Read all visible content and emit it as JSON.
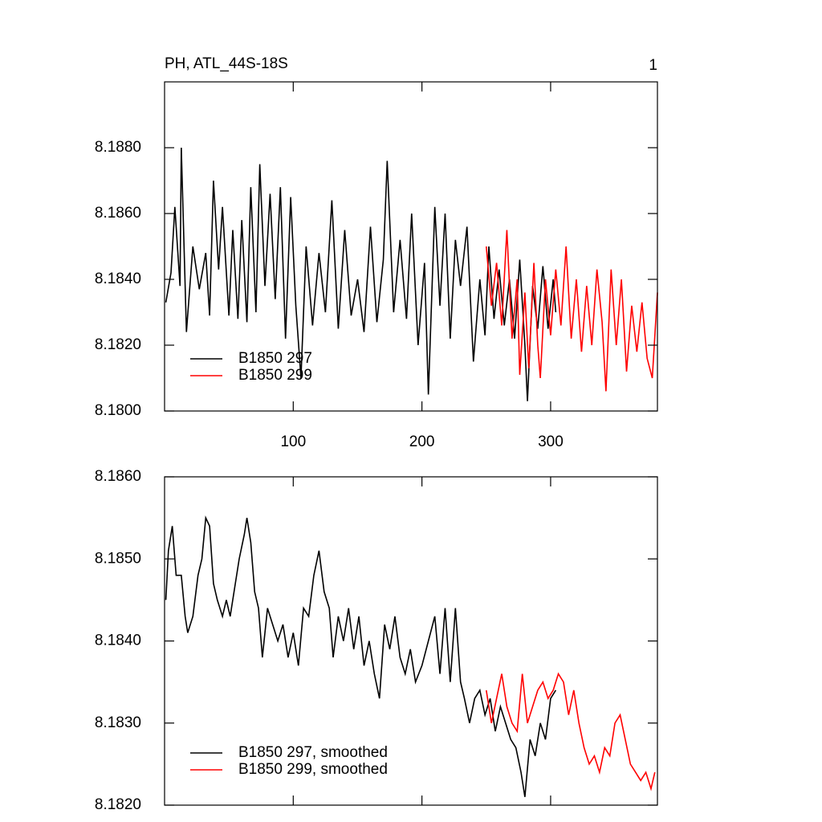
{
  "chart_data": [
    {
      "type": "line",
      "title": "PH, ATL_44S-18S",
      "right_title": "1",
      "xlim": [
        0,
        383
      ],
      "xticks": [
        100,
        200,
        300
      ],
      "show_xtick_labels": true,
      "ylim": [
        8.18,
        8.19
      ],
      "yticks": [
        {
          "value": 8.18,
          "label": "8.1800"
        },
        {
          "value": 8.182,
          "label": "8.1820"
        },
        {
          "value": 8.184,
          "label": "8.1840"
        },
        {
          "value": 8.186,
          "label": "8.1860"
        },
        {
          "value": 8.188,
          "label": "8.1880"
        }
      ],
      "legend": "lower left",
      "series": [
        {
          "name": "B1850 297",
          "color": "#000000",
          "x": [
            1,
            5,
            8,
            12,
            13,
            17,
            22,
            27,
            32,
            35,
            38,
            42,
            45,
            50,
            53,
            57,
            60,
            64,
            67,
            71,
            74,
            78,
            82,
            86,
            90,
            94,
            98,
            102,
            106,
            110,
            115,
            120,
            125,
            130,
            135,
            140,
            145,
            150,
            155,
            160,
            165,
            170,
            173,
            178,
            183,
            188,
            192,
            197,
            202,
            205,
            210,
            214,
            218,
            222,
            226,
            230,
            235,
            240,
            245,
            249,
            252,
            256,
            260,
            264,
            268,
            272,
            276,
            280,
            282,
            286,
            290,
            294,
            298,
            302,
            304
          ],
          "values": [
            8.1833,
            8.1842,
            8.1862,
            8.1838,
            8.188,
            8.1824,
            8.185,
            8.1837,
            8.1848,
            8.1829,
            8.187,
            8.1843,
            8.1862,
            8.1829,
            8.1855,
            8.1828,
            8.1858,
            8.1827,
            8.1868,
            8.183,
            8.1875,
            8.1838,
            8.1866,
            8.1834,
            8.1868,
            8.1822,
            8.1865,
            8.1832,
            8.181,
            8.185,
            8.1826,
            8.1848,
            8.183,
            8.1864,
            8.1825,
            8.1855,
            8.1829,
            8.184,
            8.1824,
            8.1856,
            8.1827,
            8.1846,
            8.1876,
            8.183,
            8.1852,
            8.1828,
            8.186,
            8.182,
            8.1845,
            8.1805,
            8.1862,
            8.1832,
            8.186,
            8.1822,
            8.1852,
            8.1838,
            8.1856,
            8.1815,
            8.184,
            8.1823,
            8.185,
            8.1828,
            8.1843,
            8.1826,
            8.184,
            8.1822,
            8.1846,
            8.182,
            8.1803,
            8.1838,
            8.1825,
            8.1844,
            8.1825,
            8.184,
            8.183
          ]
        },
        {
          "name": "B1850 299",
          "color": "#ff0000",
          "x": [
            250,
            254,
            258,
            262,
            266,
            270,
            274,
            276,
            280,
            283,
            287,
            290,
            292,
            296,
            300,
            304,
            308,
            312,
            316,
            320,
            324,
            328,
            332,
            336,
            340,
            343,
            347,
            351,
            355,
            359,
            363,
            367,
            371,
            375,
            379,
            383
          ],
          "values": [
            8.185,
            8.1832,
            8.1845,
            8.1826,
            8.1855,
            8.1822,
            8.184,
            8.1811,
            8.1836,
            8.1813,
            8.1845,
            8.182,
            8.181,
            8.184,
            8.1823,
            8.1843,
            8.1826,
            8.185,
            8.1822,
            8.184,
            8.1818,
            8.1838,
            8.182,
            8.1843,
            8.1827,
            8.1806,
            8.1843,
            8.182,
            8.184,
            8.1812,
            8.1832,
            8.1818,
            8.1833,
            8.1816,
            8.181,
            8.1836
          ]
        }
      ]
    },
    {
      "type": "line",
      "xlim": [
        0,
        383
      ],
      "xticks": [
        100,
        200,
        300
      ],
      "show_xtick_labels": false,
      "ylim": [
        8.182,
        8.186
      ],
      "yticks": [
        {
          "value": 8.182,
          "label": "8.1820"
        },
        {
          "value": 8.183,
          "label": "8.1830"
        },
        {
          "value": 8.184,
          "label": "8.1840"
        },
        {
          "value": 8.185,
          "label": "8.1850"
        },
        {
          "value": 8.186,
          "label": "8.1860"
        }
      ],
      "legend": "lower left",
      "series": [
        {
          "name": "B1850 297, smoothed",
          "color": "#000000",
          "x": [
            1,
            3,
            6,
            9,
            13,
            16,
            18,
            22,
            26,
            29,
            32,
            35,
            38,
            41,
            45,
            48,
            51,
            55,
            58,
            62,
            64,
            67,
            70,
            73,
            76,
            80,
            84,
            88,
            92,
            96,
            100,
            104,
            108,
            112,
            116,
            120,
            124,
            128,
            131,
            135,
            139,
            143,
            147,
            151,
            155,
            159,
            163,
            167,
            171,
            175,
            179,
            183,
            187,
            191,
            195,
            200,
            205,
            210,
            214,
            218,
            222,
            226,
            230,
            233,
            237,
            241,
            245,
            249,
            253,
            257,
            261,
            265,
            269,
            273,
            277,
            280,
            284,
            288,
            292,
            296,
            300,
            304
          ],
          "values": [
            8.1845,
            8.1851,
            8.1854,
            8.1848,
            8.1848,
            8.1843,
            8.1841,
            8.1843,
            8.1848,
            8.185,
            8.1855,
            8.1854,
            8.1847,
            8.1845,
            8.1843,
            8.1845,
            8.1843,
            8.1847,
            8.185,
            8.1853,
            8.1855,
            8.1852,
            8.1846,
            8.1844,
            8.1838,
            8.1844,
            8.1842,
            8.184,
            8.1842,
            8.1838,
            8.1841,
            8.1837,
            8.1844,
            8.1843,
            8.1848,
            8.1851,
            8.1846,
            8.1844,
            8.1838,
            8.1843,
            8.184,
            8.1844,
            8.1839,
            8.1843,
            8.1837,
            8.184,
            8.1836,
            8.1833,
            8.1842,
            8.1839,
            8.1843,
            8.1838,
            8.1836,
            8.1839,
            8.1835,
            8.1837,
            8.184,
            8.1843,
            8.1836,
            8.1844,
            8.1835,
            8.1844,
            8.1835,
            8.1833,
            8.183,
            8.1833,
            8.1834,
            8.1831,
            8.1833,
            8.1829,
            8.1832,
            8.183,
            8.1828,
            8.1827,
            8.1824,
            8.1821,
            8.1828,
            8.1826,
            8.183,
            8.1828,
            8.1833,
            8.1834
          ]
        },
        {
          "name": "B1850 299, smoothed",
          "color": "#ff0000",
          "x": [
            250,
            254,
            258,
            262,
            266,
            270,
            274,
            278,
            282,
            286,
            290,
            294,
            298,
            302,
            306,
            310,
            314,
            318,
            322,
            326,
            330,
            334,
            338,
            342,
            346,
            350,
            354,
            358,
            362,
            366,
            370,
            374,
            378,
            381
          ],
          "values": [
            8.1834,
            8.183,
            8.1833,
            8.1836,
            8.1832,
            8.183,
            8.1829,
            8.1836,
            8.183,
            8.1832,
            8.1834,
            8.1835,
            8.1833,
            8.1834,
            8.1836,
            8.1835,
            8.1831,
            8.1834,
            8.183,
            8.1827,
            8.1825,
            8.1826,
            8.1824,
            8.1827,
            8.1826,
            8.183,
            8.1831,
            8.1828,
            8.1825,
            8.1824,
            8.1823,
            8.1824,
            8.1822,
            8.1824
          ]
        }
      ]
    }
  ]
}
